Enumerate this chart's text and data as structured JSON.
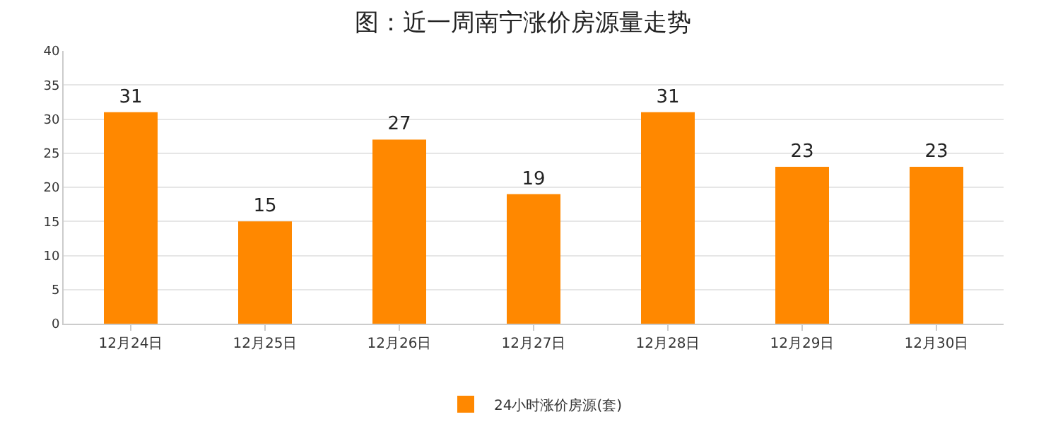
{
  "chart_data": {
    "type": "bar",
    "title": "图：近一周南宁涨价房源量走势",
    "categories": [
      "12月24日",
      "12月25日",
      "12月26日",
      "12月27日",
      "12月28日",
      "12月29日",
      "12月30日"
    ],
    "series": [
      {
        "name": "24小时涨价房源(套)",
        "color": "#ff8800",
        "values": [
          31,
          15,
          27,
          19,
          31,
          23,
          23
        ]
      }
    ],
    "ylim": [
      0,
      40
    ],
    "yticks": [
      0,
      5,
      10,
      15,
      20,
      25,
      30,
      35,
      40
    ],
    "grid": "y",
    "legend": "bottom",
    "data_labels": true
  }
}
